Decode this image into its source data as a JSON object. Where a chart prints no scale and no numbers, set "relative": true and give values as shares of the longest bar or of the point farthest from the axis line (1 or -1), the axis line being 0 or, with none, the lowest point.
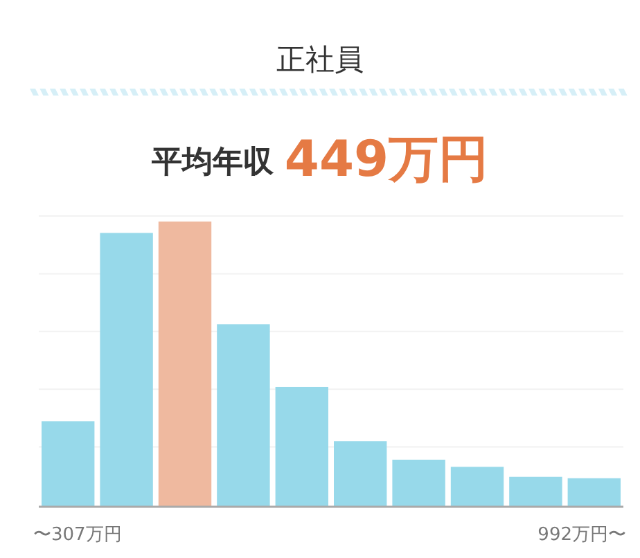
{
  "chart_data": {
    "type": "bar",
    "title": "正社員",
    "subtitle": "平均年収",
    "annotations": [
      "449万円"
    ],
    "relative": true,
    "grid": "y",
    "categories": [
      "〜307万円",
      null,
      null,
      null,
      null,
      null,
      null,
      null,
      null,
      "992万円〜"
    ],
    "values": [
      0.3,
      0.96,
      1.0,
      0.64,
      0.42,
      0.23,
      0.165,
      0.14,
      0.105,
      0.1
    ],
    "colors": [
      "#97d9ea",
      "#97d9ea",
      "#efb99f",
      "#97d9ea",
      "#97d9ea",
      "#97d9ea",
      "#97d9ea",
      "#97d9ea",
      "#97d9ea",
      "#97d9ea"
    ]
  }
}
